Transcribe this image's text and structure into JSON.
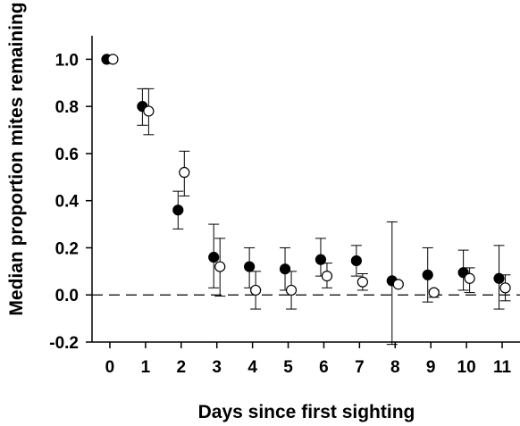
{
  "chart_data": {
    "type": "scatter",
    "title": "",
    "xlabel": "Days since first sighting",
    "ylabel": "Median proportion mites remaining",
    "x_ticks": [
      "0",
      "1",
      "2",
      "3",
      "4",
      "5",
      "6",
      "7",
      "8",
      "9",
      "10",
      "11"
    ],
    "y_ticks": [
      "-0.2",
      "0.0",
      "0.2",
      "0.4",
      "0.6",
      "0.8",
      "1.0"
    ],
    "xlim": [
      -0.5,
      11.5
    ],
    "ylim": [
      -0.2,
      1.1
    ],
    "reference_line": {
      "y": 0.0,
      "style": "dashed"
    },
    "grid": false,
    "legend": "none",
    "series": [
      {
        "marker": "filled-circle",
        "color": "#000000",
        "x": [
          0,
          1,
          2,
          3,
          4,
          5,
          6,
          7,
          8,
          9,
          10,
          11
        ],
        "y": [
          1.0,
          0.8,
          0.36,
          0.16,
          0.12,
          0.11,
          0.15,
          0.145,
          0.06,
          0.085,
          0.095,
          0.07
        ],
        "err_low": [
          1.0,
          0.72,
          0.28,
          0.03,
          0.03,
          0.02,
          0.08,
          0.08,
          -0.21,
          -0.03,
          0.02,
          -0.06
        ],
        "err_high": [
          1.0,
          0.875,
          0.44,
          0.3,
          0.2,
          0.2,
          0.24,
          0.21,
          0.31,
          0.2,
          0.19,
          0.21
        ]
      },
      {
        "marker": "open-circle",
        "color": "#000000",
        "x": [
          0,
          1,
          2,
          3,
          4,
          5,
          6,
          7,
          8,
          9,
          10,
          11
        ],
        "y": [
          1.0,
          0.78,
          0.52,
          0.12,
          0.02,
          0.02,
          0.08,
          0.055,
          0.045,
          0.01,
          0.07,
          0.03
        ],
        "err_low": [
          1.0,
          0.68,
          0.42,
          -0.005,
          -0.06,
          -0.06,
          0.03,
          0.02,
          0.04,
          -0.01,
          0.01,
          -0.025
        ],
        "err_high": [
          1.0,
          0.875,
          0.61,
          0.24,
          0.1,
          0.1,
          0.135,
          0.09,
          0.05,
          0.02,
          0.115,
          0.085
        ]
      }
    ]
  }
}
